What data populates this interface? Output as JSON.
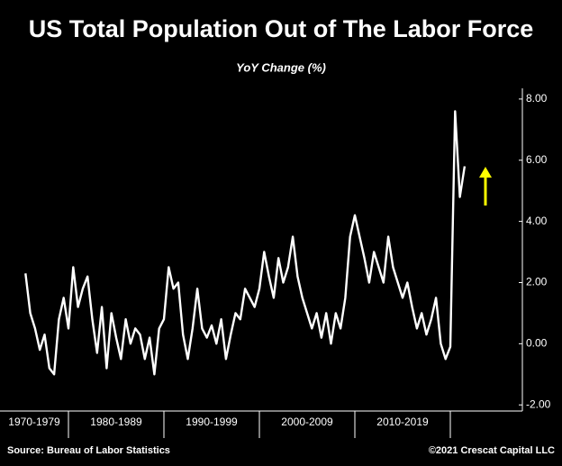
{
  "chart_data": {
    "type": "line",
    "title": "US Total Population Out of The Labor Force",
    "subtitle": "YoY Change (%)",
    "source": "Source: Bureau of Labor Statistics",
    "credit": "©2021 Crescat Capital LLC",
    "color": "#ffffff",
    "categories": [
      "1970-1979",
      "1980-1989",
      "1990-1999",
      "2000-2009",
      "2010-2019",
      null
    ],
    "values": [
      [
        null,
        null,
        null,
        null,
        null,
        null,
        null,
        null,
        null,
        null,
        null,
        2.3,
        1.0,
        0.5,
        -0.2,
        0.3,
        -0.8,
        -1.0,
        0.8,
        1.5
      ],
      [
        0.5,
        2.5,
        1.2,
        1.8,
        2.2,
        0.8,
        -0.3,
        1.2,
        -0.8,
        1.0,
        0.2,
        -0.5,
        0.8,
        0.0,
        0.5,
        0.3,
        -0.5,
        0.2,
        -1.0,
        0.5
      ],
      [
        0.8,
        2.5,
        1.8,
        2.0,
        0.3,
        -0.5,
        0.5,
        1.8,
        0.5,
        0.2,
        0.6,
        0.0,
        0.8,
        -0.5,
        0.3,
        1.0,
        0.8,
        1.8,
        1.5,
        1.2
      ],
      [
        1.8,
        3.0,
        2.2,
        1.5,
        2.8,
        2.0,
        2.5,
        3.5,
        2.2,
        1.5,
        1.0,
        0.5,
        1.0,
        0.2,
        1.0,
        0.0,
        1.0,
        0.5,
        1.5,
        3.5
      ],
      [
        4.2,
        3.5,
        2.8,
        2.0,
        3.0,
        2.5,
        2.0,
        3.5,
        2.5,
        2.0,
        1.5,
        2.0,
        1.2,
        0.5,
        1.0,
        0.3,
        0.8,
        1.5,
        0.0,
        -0.5
      ],
      [
        -0.1,
        7.6,
        4.8,
        5.8
      ]
    ],
    "ylim": [
      -2.2,
      8.35
    ],
    "yticks": [
      {
        "value": -2,
        "label": "-2.00"
      },
      {
        "value": 0,
        "label": "0.00"
      },
      {
        "value": 2,
        "label": "2.00"
      },
      {
        "value": 4,
        "label": "4.00"
      },
      {
        "value": 6,
        "label": "6.00"
      },
      {
        "value": 8,
        "label": "8.00"
      }
    ]
  }
}
